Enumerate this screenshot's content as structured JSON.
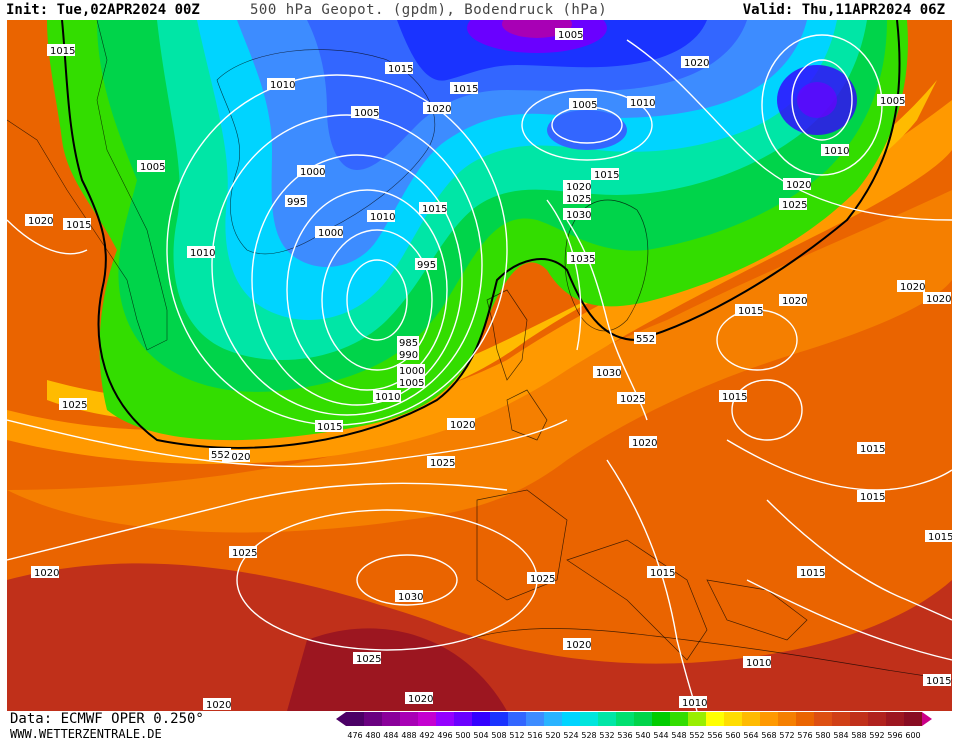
{
  "header": {
    "init": "Init: Tue,02APR2024 00Z",
    "title": "500 hPa Geopot. (gpdm), Bodendruck (hPa)",
    "valid": "Valid: Thu,11APR2024 06Z"
  },
  "isobar_labels": [
    "1015",
    "1010",
    "1005",
    "1000",
    "995",
    "990",
    "985",
    "1020",
    "1025",
    "1030",
    "1035",
    "552"
  ],
  "footer": {
    "data_source": "Data: ECMWF OPER 0.250°",
    "website": "WWW.WETTERZENTRALE.DE"
  },
  "colorbar": {
    "ticks": [
      "476",
      "480",
      "484",
      "488",
      "492",
      "496",
      "500",
      "504",
      "508",
      "512",
      "516",
      "520",
      "524",
      "528",
      "532",
      "536",
      "540",
      "544",
      "548",
      "552",
      "556",
      "560",
      "564",
      "568",
      "572",
      "576",
      "580",
      "584",
      "588",
      "592",
      "596",
      "600"
    ],
    "colors": [
      "#4b0066",
      "#6a0080",
      "#8a009a",
      "#a800b5",
      "#c400d0",
      "#9400ff",
      "#6a00ff",
      "#3300ff",
      "#1a33ff",
      "#3366ff",
      "#3d8cff",
      "#29b3ff",
      "#00d4ff",
      "#00e5dd",
      "#00e6a6",
      "#00e070",
      "#00d44a",
      "#00cc00",
      "#33dd00",
      "#99ee00",
      "#ffff00",
      "#ffdd00",
      "#ffbb00",
      "#ff9900",
      "#f57f00",
      "#ea6400",
      "#dd4f12",
      "#d03f16",
      "#c0301a",
      "#b0221e",
      "#9c1620",
      "#880c22"
    ]
  }
}
